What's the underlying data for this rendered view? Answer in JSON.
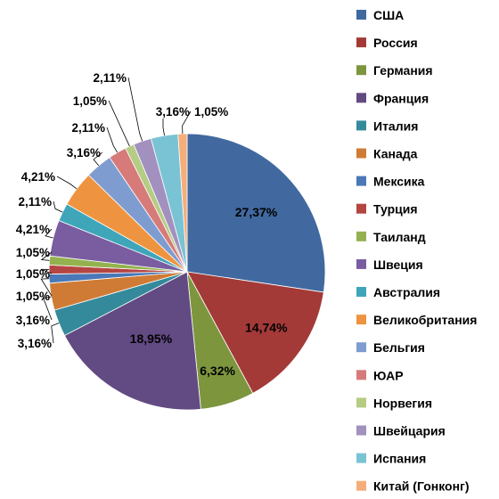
{
  "chart_data": {
    "type": "pie",
    "title": "",
    "legend": "right",
    "slices": [
      {
        "label": "США",
        "value": 27.37,
        "display": "27,37%",
        "color": "#4169A0"
      },
      {
        "label": "Россия",
        "value": 14.74,
        "display": "14,74%",
        "color": "#A33A38"
      },
      {
        "label": "Германия",
        "value": 6.32,
        "display": "6,32%",
        "color": "#7D963E"
      },
      {
        "label": "Франция",
        "value": 18.95,
        "display": "18,95%",
        "color": "#624A82"
      },
      {
        "label": "Италия",
        "value": 3.16,
        "display": "3,16%",
        "color": "#348A9B"
      },
      {
        "label": "Канада",
        "value": 3.16,
        "display": "3,16%",
        "color": "#D07B35"
      },
      {
        "label": "Мексика",
        "value": 1.05,
        "display": "1,05%",
        "color": "#4A78B8"
      },
      {
        "label": "Турция",
        "value": 1.05,
        "display": "1,05%",
        "color": "#B54542"
      },
      {
        "label": "Таиланд",
        "value": 1.05,
        "display": "1,05%",
        "color": "#93B24F"
      },
      {
        "label": "Швеция",
        "value": 4.21,
        "display": "4,21%",
        "color": "#7A5DA0"
      },
      {
        "label": "Австралия",
        "value": 2.11,
        "display": "2,11%",
        "color": "#3FA6BA"
      },
      {
        "label": "Великобритания",
        "value": 4.21,
        "display": "4,21%",
        "color": "#EE9440"
      },
      {
        "label": "Бельгия",
        "value": 3.16,
        "display": "3,16%",
        "color": "#7E9CD0"
      },
      {
        "label": "ЮАР",
        "value": 2.11,
        "display": "2,11%",
        "color": "#D67B79"
      },
      {
        "label": "Норвегия",
        "value": 1.05,
        "display": "1,05%",
        "color": "#B4CC84"
      },
      {
        "label": "Швейцария",
        "value": 2.11,
        "display": "2,11%",
        "color": "#A291BF"
      },
      {
        "label": "Испания",
        "value": 3.16,
        "display": "3,16%",
        "color": "#7AC3D4"
      },
      {
        "label": "Китай (Гонконг)",
        "value": 1.05,
        "display": "1,05%",
        "color": "#F5AE79"
      }
    ]
  }
}
